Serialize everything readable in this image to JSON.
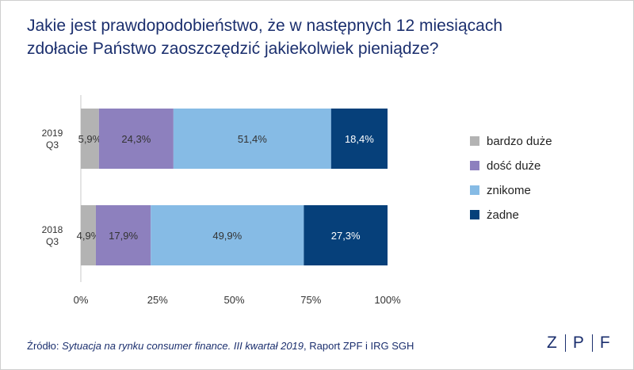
{
  "title": {
    "line1": "Jakie jest prawdopodobieństwo, że w następnych 12 miesiącach",
    "line2": "zdołacie Państwo zaoszczędzić jakiekolwiek pieniądze?"
  },
  "chart_data": {
    "type": "bar",
    "orientation": "horizontal",
    "stacked": true,
    "percent": true,
    "categories": [
      "2019\nQ3",
      "2018\nQ3"
    ],
    "series": [
      {
        "name": "bardzo duże",
        "color": "#b3b3b3",
        "values": [
          5.9,
          4.9
        ],
        "labels": [
          "5,9%",
          "4,9%"
        ]
      },
      {
        "name": "dość duże",
        "color": "#8d80be",
        "values": [
          24.3,
          17.9
        ],
        "labels": [
          "24,3%",
          "17,9%"
        ]
      },
      {
        "name": "znikome",
        "color": "#86bbe5",
        "values": [
          51.4,
          49.9
        ],
        "labels": [
          "51,4%",
          "49,9%"
        ]
      },
      {
        "name": "żadne",
        "color": "#06407a",
        "values": [
          18.4,
          27.3
        ],
        "labels": [
          "18,4%",
          "27,3%"
        ]
      }
    ],
    "xlim": [
      0,
      100
    ],
    "xticks": [
      "0%",
      "25%",
      "50%",
      "75%",
      "100%"
    ],
    "grid": false,
    "legend": "right"
  },
  "source": {
    "prefix": "Źródło: ",
    "italic": "Sytuacja na rynku consumer finance. III kwartał 2019",
    "suffix": ", Raport ZPF i IRG SGH"
  },
  "logo": {
    "letters": [
      "Z",
      "P",
      "F"
    ]
  },
  "colors": {
    "text": "#1b2f6e",
    "label_dark": "#333333",
    "label_light": "#ffffff"
  }
}
